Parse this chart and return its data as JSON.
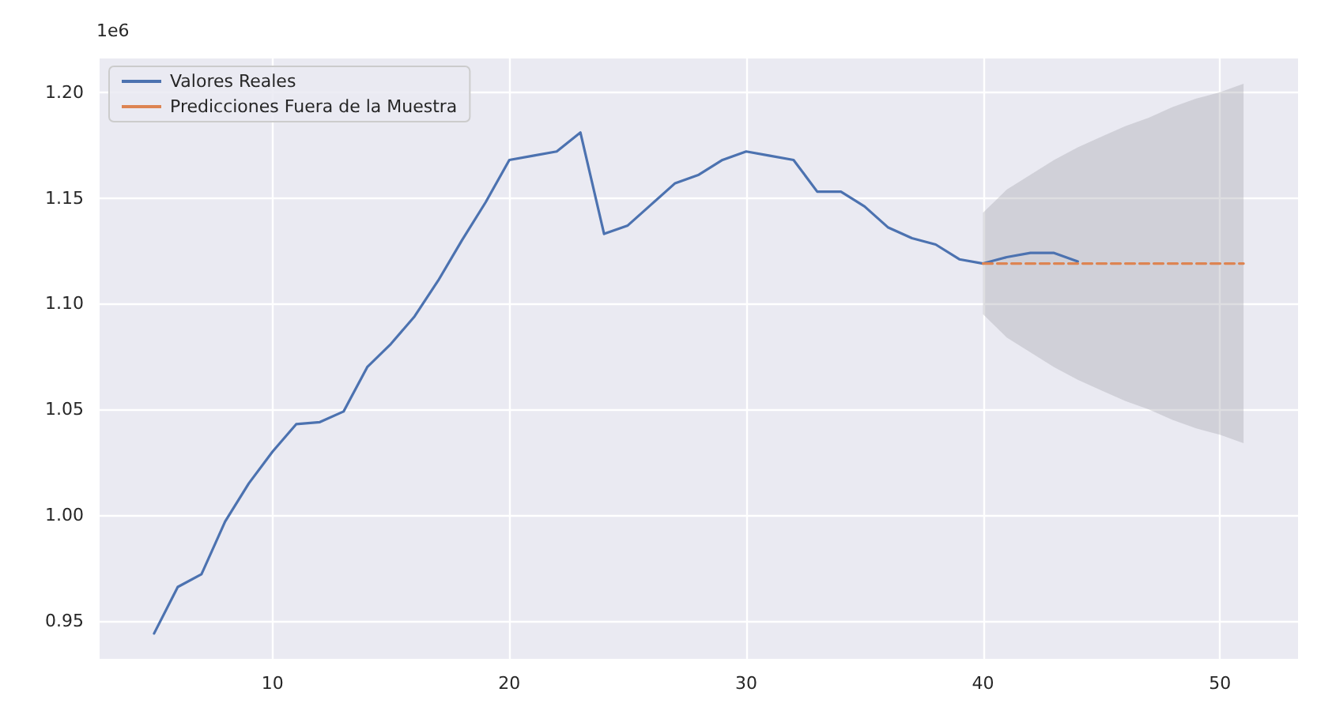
{
  "chart_data": {
    "type": "line",
    "x": [
      5,
      6,
      7,
      8,
      9,
      10,
      11,
      12,
      13,
      14,
      15,
      16,
      17,
      18,
      19,
      20,
      21,
      22,
      23,
      24,
      25,
      26,
      27,
      28,
      29,
      30,
      31,
      32,
      33,
      34,
      35,
      36,
      37,
      38,
      39,
      40,
      41,
      42,
      43,
      44
    ],
    "series": [
      {
        "name": "Valores Reales",
        "color": "#4c72b0",
        "line_style": "solid",
        "values": [
          0.944,
          0.966,
          0.972,
          0.997,
          1.015,
          1.03,
          1.043,
          1.044,
          1.049,
          1.07,
          1.081,
          1.094,
          1.111,
          1.13,
          1.148,
          1.168,
          1.17,
          1.172,
          1.181,
          1.133,
          1.137,
          1.147,
          1.157,
          1.161,
          1.168,
          1.172,
          1.17,
          1.168,
          1.153,
          1.153,
          1.146,
          1.136,
          1.131,
          1.128,
          1.121,
          1.119,
          1.122,
          1.124,
          1.124,
          1.12
        ]
      },
      {
        "name": "Predicciones Fuera de la Muestra",
        "color": "#dd8452",
        "line_style": "dashed",
        "x": [
          40,
          41,
          42,
          43,
          44,
          45,
          46,
          47,
          48,
          49,
          50,
          51
        ],
        "values": [
          1.119,
          1.119,
          1.119,
          1.119,
          1.119,
          1.119,
          1.119,
          1.119,
          1.119,
          1.119,
          1.119,
          1.119
        ],
        "lower": [
          1.095,
          1.084,
          1.077,
          1.07,
          1.064,
          1.059,
          1.054,
          1.05,
          1.045,
          1.041,
          1.038,
          1.034
        ],
        "upper": [
          1.143,
          1.154,
          1.161,
          1.168,
          1.174,
          1.179,
          1.184,
          1.188,
          1.193,
          1.197,
          1.2,
          1.204
        ]
      }
    ],
    "xlim": [
      2.7,
      53.3
    ],
    "xticks": [
      10,
      20,
      30,
      40,
      50
    ],
    "ylim": [
      0.932,
      1.216
    ],
    "yticks": [
      0.95,
      {
        "value": 1,
        "label": "1.00"
      },
      1.05,
      {
        "value": 1.1,
        "label": "1.10"
      },
      1.15,
      {
        "value": 1.2,
        "label": "1.20"
      }
    ],
    "annotations": [
      "1e6"
    ],
    "grid": true,
    "legend": "top left",
    "marker": "none"
  }
}
